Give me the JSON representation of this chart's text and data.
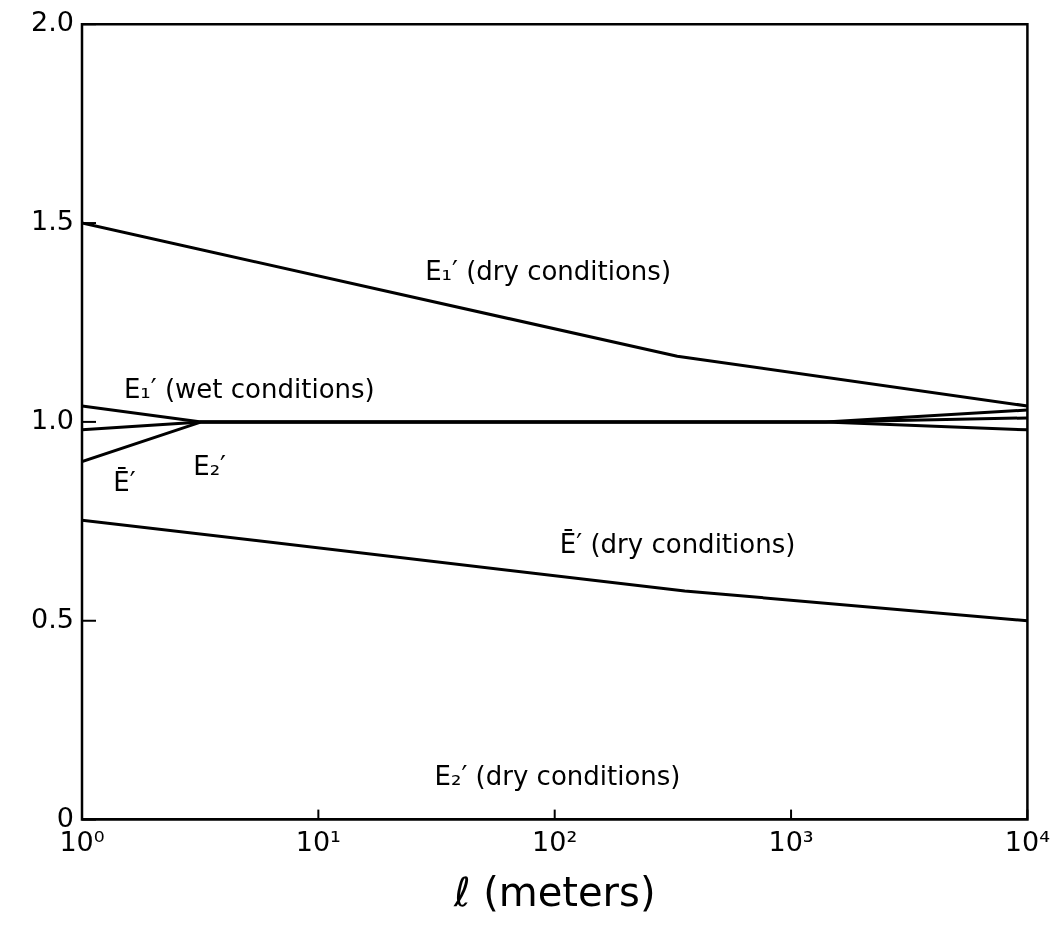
{
  "chart_data": {
    "type": "line",
    "xlabel": "ℓ (meters)",
    "log": "x",
    "grid": false,
    "legend": false,
    "marker": "none",
    "line_style": "solid",
    "xlim": [
      1,
      10000
    ],
    "xticks": [
      {
        "value": 1,
        "label": "10⁰"
      },
      {
        "value": 10,
        "label": "10¹"
      },
      {
        "value": 100,
        "label": "10²"
      },
      {
        "value": 1000,
        "label": "10³"
      },
      {
        "value": 10000,
        "label": "10⁴"
      }
    ],
    "ylim": [
      0,
      2
    ],
    "yticks": [
      0,
      0.5,
      {
        "value": 1,
        "label": "1.0"
      },
      1.5,
      {
        "value": 2,
        "label": "2.0"
      }
    ],
    "series": [
      {
        "color": "#000000",
        "x": [
          1,
          330,
          10000
        ],
        "values": [
          1.5,
          1.165,
          1.04
        ]
      },
      {
        "color": "#000000",
        "x": [
          1,
          3.2,
          1400,
          10000
        ],
        "values": [
          1.04,
          1.0,
          1.0,
          1.03
        ]
      },
      {
        "color": "#000000",
        "x": [
          1,
          3.2,
          1400,
          10000
        ],
        "values": [
          0.98,
          1.0,
          1.0,
          1.01
        ]
      },
      {
        "color": "#000000",
        "x": [
          1,
          3.2,
          1400,
          10000
        ],
        "values": [
          0.9,
          1.0,
          1.0,
          0.98
        ]
      },
      {
        "color": "#000000",
        "x": [
          1,
          355,
          10000
        ],
        "values": [
          0.753,
          0.575,
          0.5
        ]
      },
      {
        "color": "#000000",
        "x": [
          1,
          10000
        ],
        "values": [
          0,
          0
        ]
      }
    ],
    "annotations": [
      "E₁′ (dry conditions)",
      "E₁′ (wet conditions)",
      "E₂′",
      "Ē′",
      "Ē′ (dry conditions)",
      "E₂′ (dry conditions)"
    ]
  }
}
